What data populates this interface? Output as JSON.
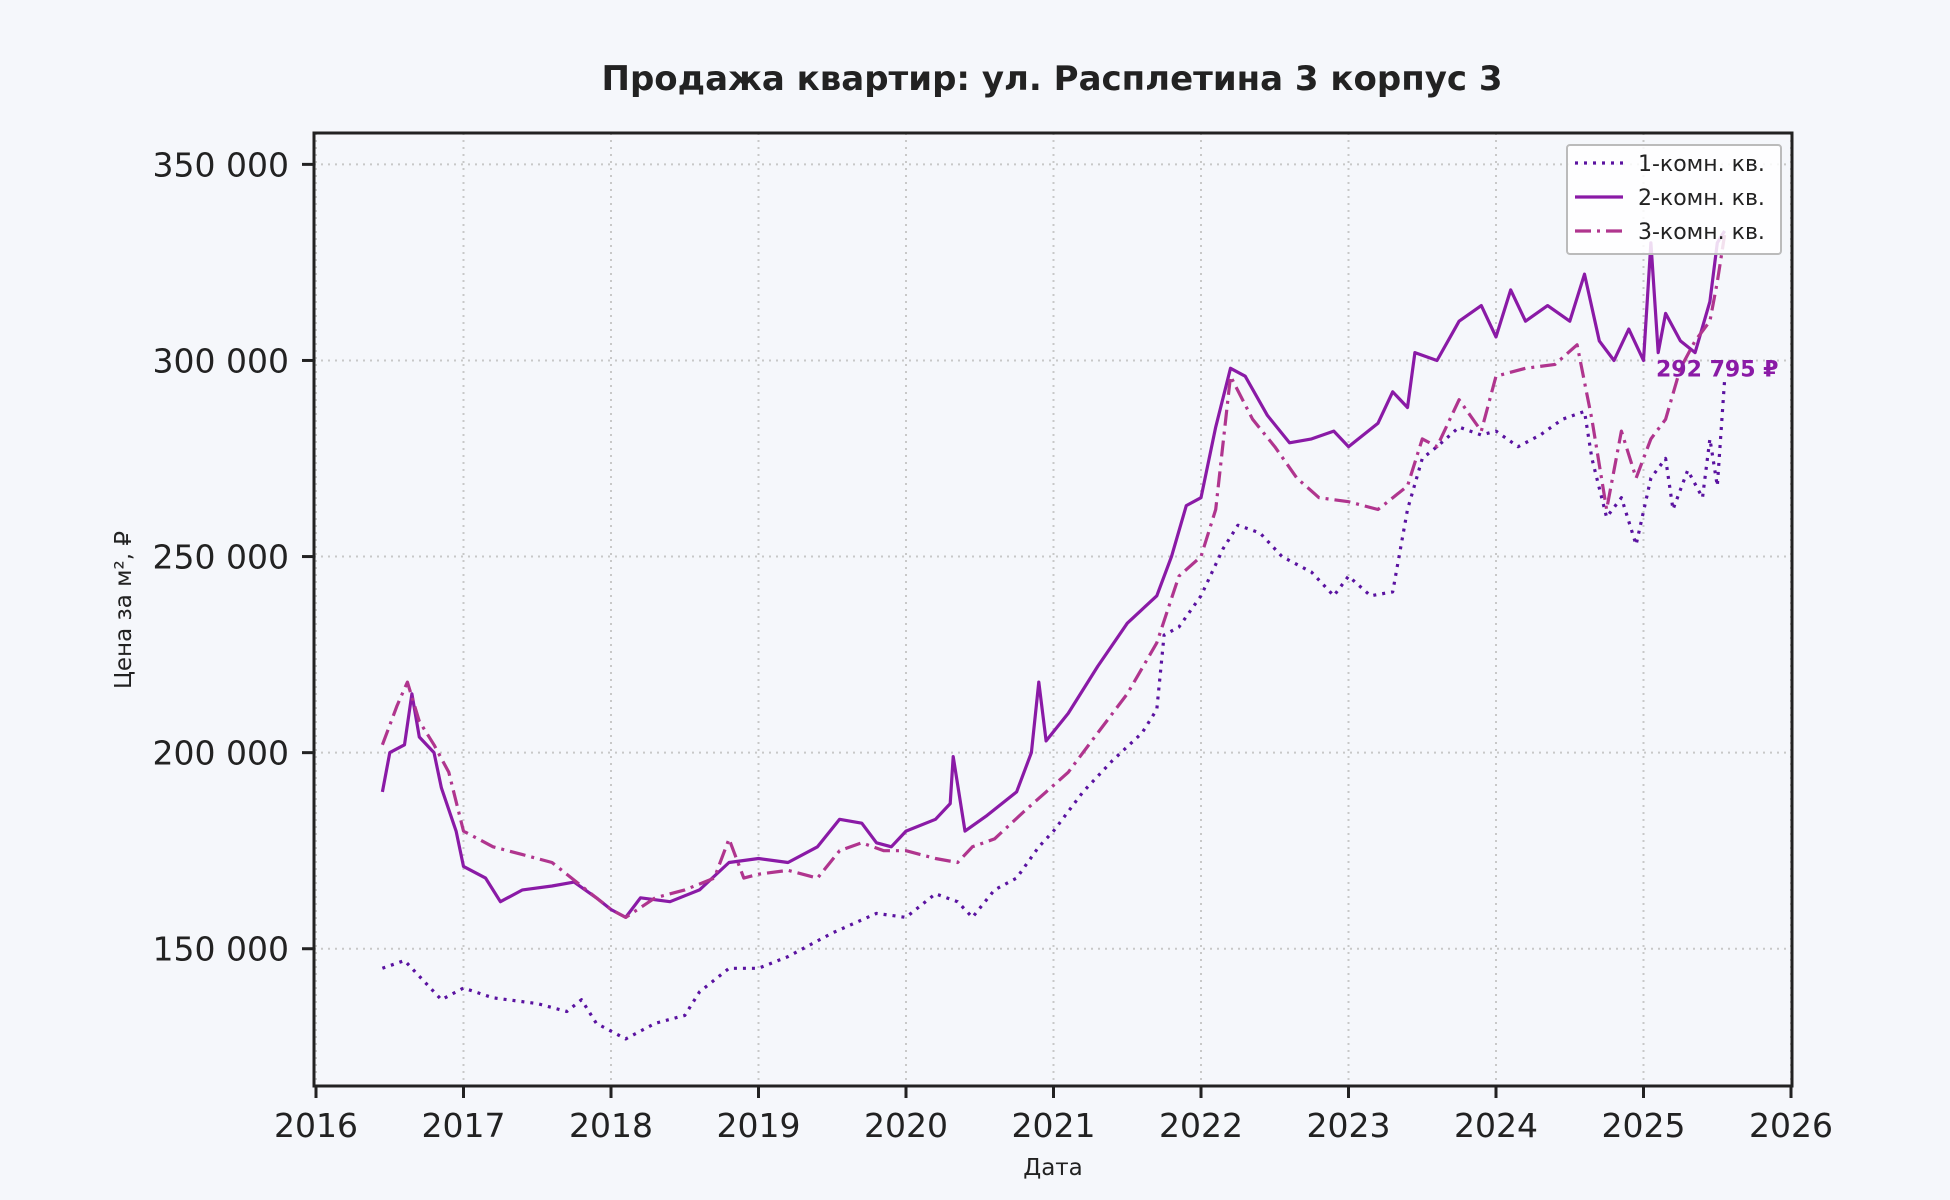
{
  "chart_data": {
    "type": "line",
    "title": "Продажа квартир: ул. Расплетина 3 корпус 3",
    "xlabel": "Дата",
    "ylabel": "Цена за м², ₽",
    "xlim": [
      2016,
      2026
    ],
    "ylim": [
      115000,
      358000
    ],
    "x_ticks": [
      2016,
      2017,
      2018,
      2019,
      2020,
      2021,
      2022,
      2023,
      2024,
      2025,
      2026
    ],
    "x_tick_labels": [
      "2016",
      "2017",
      "2018",
      "2019",
      "2020",
      "2021",
      "2022",
      "2023",
      "2024",
      "2025",
      "2026"
    ],
    "y_ticks": [
      150000,
      200000,
      250000,
      300000,
      350000
    ],
    "y_tick_labels": [
      "150 000",
      "200 000",
      "250 000",
      "300 000",
      "350 000"
    ],
    "grid": true,
    "legend_position": "top-right",
    "annotation": {
      "text": "292 795 ₽",
      "x": 2025.5,
      "y": 298000,
      "color": "#8a1aa6"
    },
    "series": [
      {
        "name": "1-комн. кв.",
        "color": "#5a12a0",
        "dash": "dotted",
        "points": [
          [
            2016.45,
            145000
          ],
          [
            2016.6,
            147000
          ],
          [
            2016.75,
            141000
          ],
          [
            2016.85,
            137000
          ],
          [
            2017.0,
            140000
          ],
          [
            2017.2,
            137500
          ],
          [
            2017.5,
            136000
          ],
          [
            2017.7,
            134000
          ],
          [
            2017.8,
            137000
          ],
          [
            2017.9,
            131000
          ],
          [
            2018.1,
            127000
          ],
          [
            2018.3,
            131000
          ],
          [
            2018.5,
            133000
          ],
          [
            2018.6,
            139000
          ],
          [
            2018.8,
            145000
          ],
          [
            2019.0,
            145000
          ],
          [
            2019.2,
            148000
          ],
          [
            2019.5,
            154000
          ],
          [
            2019.8,
            159000
          ],
          [
            2020.0,
            158000
          ],
          [
            2020.2,
            164000
          ],
          [
            2020.35,
            162000
          ],
          [
            2020.45,
            158000
          ],
          [
            2020.6,
            165000
          ],
          [
            2020.75,
            168000
          ],
          [
            2020.9,
            176000
          ],
          [
            2021.0,
            180000
          ],
          [
            2021.2,
            190000
          ],
          [
            2021.4,
            198000
          ],
          [
            2021.6,
            205000
          ],
          [
            2021.7,
            211000
          ],
          [
            2021.75,
            230000
          ],
          [
            2021.85,
            232000
          ],
          [
            2022.0,
            240000
          ],
          [
            2022.15,
            252000
          ],
          [
            2022.25,
            258000
          ],
          [
            2022.4,
            256000
          ],
          [
            2022.55,
            250000
          ],
          [
            2022.75,
            246000
          ],
          [
            2022.9,
            240000
          ],
          [
            2023.0,
            245000
          ],
          [
            2023.15,
            240000
          ],
          [
            2023.3,
            241000
          ],
          [
            2023.4,
            262000
          ],
          [
            2023.5,
            275000
          ],
          [
            2023.6,
            278000
          ],
          [
            2023.75,
            283000
          ],
          [
            2023.9,
            281000
          ],
          [
            2024.0,
            282000
          ],
          [
            2024.15,
            278000
          ],
          [
            2024.3,
            281000
          ],
          [
            2024.45,
            285000
          ],
          [
            2024.6,
            287000
          ],
          [
            2024.65,
            275000
          ],
          [
            2024.75,
            260000
          ],
          [
            2024.85,
            265000
          ],
          [
            2024.95,
            253000
          ],
          [
            2025.05,
            270000
          ],
          [
            2025.15,
            275000
          ],
          [
            2025.2,
            262000
          ],
          [
            2025.3,
            272000
          ],
          [
            2025.4,
            265000
          ],
          [
            2025.45,
            280000
          ],
          [
            2025.5,
            268000
          ],
          [
            2025.55,
            295000
          ]
        ]
      },
      {
        "name": "2-комн. кв.",
        "color": "#8a1aa6",
        "dash": "solid",
        "points": [
          [
            2016.45,
            190000
          ],
          [
            2016.5,
            200000
          ],
          [
            2016.6,
            202000
          ],
          [
            2016.65,
            215000
          ],
          [
            2016.7,
            204000
          ],
          [
            2016.8,
            200000
          ],
          [
            2016.85,
            191000
          ],
          [
            2016.95,
            180000
          ],
          [
            2017.0,
            171000
          ],
          [
            2017.15,
            168000
          ],
          [
            2017.25,
            162000
          ],
          [
            2017.4,
            165000
          ],
          [
            2017.6,
            166000
          ],
          [
            2017.75,
            167000
          ],
          [
            2017.9,
            163000
          ],
          [
            2018.0,
            160000
          ],
          [
            2018.1,
            158000
          ],
          [
            2018.2,
            163000
          ],
          [
            2018.4,
            162000
          ],
          [
            2018.6,
            165000
          ],
          [
            2018.8,
            172000
          ],
          [
            2019.0,
            173000
          ],
          [
            2019.2,
            172000
          ],
          [
            2019.4,
            176000
          ],
          [
            2019.55,
            183000
          ],
          [
            2019.7,
            182000
          ],
          [
            2019.8,
            177000
          ],
          [
            2019.9,
            176000
          ],
          [
            2020.0,
            180000
          ],
          [
            2020.2,
            183000
          ],
          [
            2020.3,
            187000
          ],
          [
            2020.32,
            199000
          ],
          [
            2020.4,
            180000
          ],
          [
            2020.55,
            184000
          ],
          [
            2020.75,
            190000
          ],
          [
            2020.85,
            200000
          ],
          [
            2020.9,
            218000
          ],
          [
            2020.95,
            203000
          ],
          [
            2021.1,
            210000
          ],
          [
            2021.3,
            222000
          ],
          [
            2021.5,
            233000
          ],
          [
            2021.7,
            240000
          ],
          [
            2021.8,
            250000
          ],
          [
            2021.9,
            263000
          ],
          [
            2022.0,
            265000
          ],
          [
            2022.1,
            283000
          ],
          [
            2022.2,
            298000
          ],
          [
            2022.3,
            296000
          ],
          [
            2022.45,
            286000
          ],
          [
            2022.6,
            279000
          ],
          [
            2022.75,
            280000
          ],
          [
            2022.9,
            282000
          ],
          [
            2023.0,
            278000
          ],
          [
            2023.2,
            284000
          ],
          [
            2023.3,
            292000
          ],
          [
            2023.4,
            288000
          ],
          [
            2023.45,
            302000
          ],
          [
            2023.6,
            300000
          ],
          [
            2023.75,
            310000
          ],
          [
            2023.9,
            314000
          ],
          [
            2024.0,
            306000
          ],
          [
            2024.1,
            318000
          ],
          [
            2024.2,
            310000
          ],
          [
            2024.35,
            314000
          ],
          [
            2024.5,
            310000
          ],
          [
            2024.6,
            322000
          ],
          [
            2024.7,
            305000
          ],
          [
            2024.8,
            300000
          ],
          [
            2024.9,
            308000
          ],
          [
            2025.0,
            300000
          ],
          [
            2025.05,
            330000
          ],
          [
            2025.1,
            302000
          ],
          [
            2025.15,
            312000
          ],
          [
            2025.25,
            305000
          ],
          [
            2025.35,
            302000
          ],
          [
            2025.45,
            315000
          ],
          [
            2025.5,
            330000
          ],
          [
            2025.55,
            333000
          ]
        ]
      },
      {
        "name": "3-комн. кв.",
        "color": "#b0358e",
        "dash": "dashdot",
        "points": [
          [
            2016.45,
            202000
          ],
          [
            2016.55,
            212000
          ],
          [
            2016.62,
            218000
          ],
          [
            2016.7,
            208000
          ],
          [
            2016.8,
            202000
          ],
          [
            2016.9,
            195000
          ],
          [
            2017.0,
            180000
          ],
          [
            2017.2,
            176000
          ],
          [
            2017.4,
            174000
          ],
          [
            2017.6,
            172000
          ],
          [
            2017.8,
            166000
          ],
          [
            2018.0,
            160000
          ],
          [
            2018.1,
            158000
          ],
          [
            2018.3,
            163000
          ],
          [
            2018.5,
            165000
          ],
          [
            2018.7,
            168000
          ],
          [
            2018.8,
            178000
          ],
          [
            2018.9,
            168000
          ],
          [
            2019.0,
            169000
          ],
          [
            2019.2,
            170000
          ],
          [
            2019.4,
            168000
          ],
          [
            2019.55,
            175000
          ],
          [
            2019.7,
            177000
          ],
          [
            2019.85,
            175000
          ],
          [
            2020.0,
            175000
          ],
          [
            2020.2,
            173000
          ],
          [
            2020.35,
            172000
          ],
          [
            2020.45,
            176000
          ],
          [
            2020.6,
            178000
          ],
          [
            2020.8,
            185000
          ],
          [
            2020.95,
            190000
          ],
          [
            2021.1,
            195000
          ],
          [
            2021.3,
            205000
          ],
          [
            2021.5,
            215000
          ],
          [
            2021.7,
            228000
          ],
          [
            2021.85,
            245000
          ],
          [
            2022.0,
            250000
          ],
          [
            2022.1,
            262000
          ],
          [
            2022.2,
            296000
          ],
          [
            2022.35,
            285000
          ],
          [
            2022.5,
            278000
          ],
          [
            2022.65,
            270000
          ],
          [
            2022.8,
            265000
          ],
          [
            2023.0,
            264000
          ],
          [
            2023.2,
            262000
          ],
          [
            2023.4,
            268000
          ],
          [
            2023.5,
            280000
          ],
          [
            2023.6,
            278000
          ],
          [
            2023.75,
            290000
          ],
          [
            2023.9,
            282000
          ],
          [
            2024.0,
            296000
          ],
          [
            2024.2,
            298000
          ],
          [
            2024.4,
            299000
          ],
          [
            2024.55,
            304000
          ],
          [
            2024.65,
            285000
          ],
          [
            2024.75,
            262000
          ],
          [
            2024.85,
            282000
          ],
          [
            2024.95,
            270000
          ],
          [
            2025.05,
            280000
          ],
          [
            2025.15,
            285000
          ],
          [
            2025.25,
            298000
          ],
          [
            2025.35,
            305000
          ],
          [
            2025.45,
            310000
          ],
          [
            2025.5,
            320000
          ],
          [
            2025.55,
            332000
          ]
        ]
      }
    ]
  }
}
